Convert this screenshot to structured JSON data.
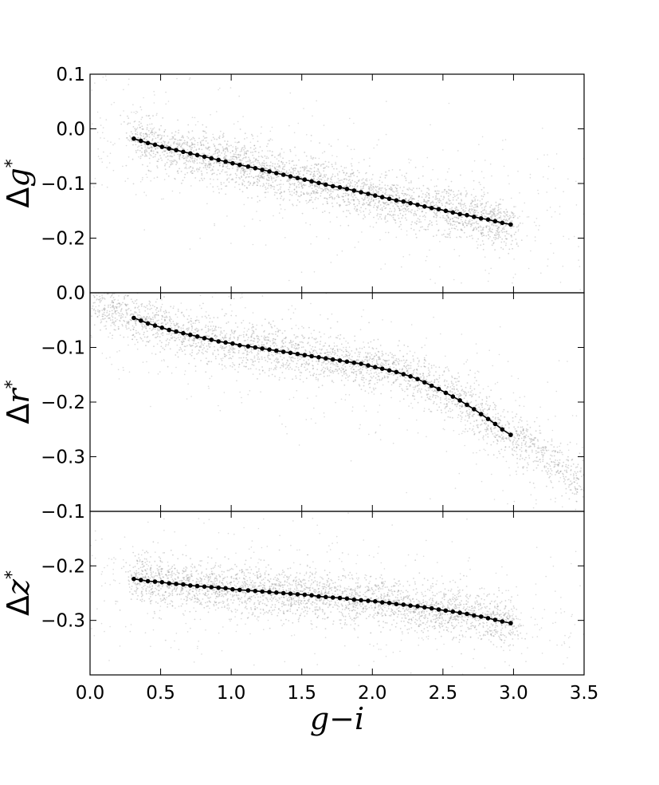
{
  "chart_data": [
    {
      "type": "scatter",
      "panel": "top",
      "ylabel": {
        "delta": "Δ",
        "var": "g",
        "sup": "*"
      },
      "xlim": [
        0.0,
        3.5
      ],
      "ylim": [
        -0.3,
        0.1
      ],
      "xticks": [
        "0.0",
        "0.5",
        "1.0",
        "1.5",
        "2.0",
        "2.5",
        "3.0",
        "3.5"
      ],
      "yticks": [
        {
          "value": 0.1,
          "label": "0.1"
        },
        {
          "value": 0.0,
          "label": "0.0"
        },
        {
          "value": -0.1,
          "label": "−0.1"
        },
        {
          "value": -0.2,
          "label": "−0.2"
        }
      ],
      "scatter_color": "#888888",
      "line_color": "#000000",
      "cloud_trend": {
        "x": [
          0.3,
          3.0
        ],
        "width": 0.022,
        "spread_x": [
          0.0,
          3.5
        ]
      },
      "series": [
        {
          "x": [
            0.31,
            0.36,
            0.41,
            0.46,
            0.51,
            0.56,
            0.61,
            0.66,
            0.71,
            0.76,
            0.81,
            0.86,
            0.91,
            0.96,
            1.01,
            1.06,
            1.12,
            1.17,
            1.22,
            1.27,
            1.32,
            1.37,
            1.42,
            1.47,
            1.52,
            1.57,
            1.62,
            1.67,
            1.72,
            1.77,
            1.82,
            1.87,
            1.92,
            1.97,
            2.02,
            2.07,
            2.12,
            2.17,
            2.22,
            2.27,
            2.32,
            2.37,
            2.42,
            2.47,
            2.52,
            2.57,
            2.62,
            2.67,
            2.72,
            2.77,
            2.82,
            2.87,
            2.92,
            2.98
          ],
          "y": [
            -0.018,
            -0.022,
            -0.026,
            -0.029,
            -0.033,
            -0.036,
            -0.039,
            -0.042,
            -0.045,
            -0.048,
            -0.051,
            -0.054,
            -0.057,
            -0.06,
            -0.063,
            -0.066,
            -0.069,
            -0.072,
            -0.075,
            -0.078,
            -0.081,
            -0.084,
            -0.087,
            -0.09,
            -0.093,
            -0.096,
            -0.099,
            -0.102,
            -0.105,
            -0.107,
            -0.11,
            -0.113,
            -0.116,
            -0.119,
            -0.122,
            -0.125,
            -0.128,
            -0.131,
            -0.133,
            -0.136,
            -0.139,
            -0.142,
            -0.145,
            -0.147,
            -0.15,
            -0.153,
            -0.156,
            -0.158,
            -0.161,
            -0.164,
            -0.166,
            -0.169,
            -0.172,
            -0.175
          ]
        }
      ]
    },
    {
      "type": "scatter",
      "panel": "middle",
      "ylabel": {
        "delta": "Δ",
        "var": "r",
        "sup": "*"
      },
      "xlim": [
        0.0,
        3.5
      ],
      "ylim": [
        -0.4,
        0.0
      ],
      "yticks": [
        {
          "value": 0.0,
          "label": "0.0"
        },
        {
          "value": -0.1,
          "label": "−0.1"
        },
        {
          "value": -0.2,
          "label": "−0.2"
        },
        {
          "value": -0.3,
          "label": "−0.3"
        }
      ],
      "scatter_color": "#888888",
      "line_color": "#000000",
      "cloud_trend": {
        "x": [
          0.0,
          3.5
        ],
        "width": 0.022,
        "spread_x": [
          0.0,
          3.5
        ]
      },
      "series": [
        {
          "x": [
            0.31,
            0.36,
            0.41,
            0.46,
            0.51,
            0.56,
            0.61,
            0.66,
            0.71,
            0.76,
            0.81,
            0.86,
            0.91,
            0.96,
            1.01,
            1.06,
            1.12,
            1.17,
            1.22,
            1.27,
            1.32,
            1.37,
            1.42,
            1.47,
            1.52,
            1.57,
            1.62,
            1.67,
            1.72,
            1.77,
            1.82,
            1.87,
            1.92,
            1.97,
            2.02,
            2.07,
            2.12,
            2.17,
            2.22,
            2.27,
            2.32,
            2.37,
            2.42,
            2.47,
            2.52,
            2.57,
            2.62,
            2.67,
            2.72,
            2.77,
            2.82,
            2.87,
            2.92,
            2.98
          ],
          "y": [
            -0.046,
            -0.051,
            -0.056,
            -0.06,
            -0.064,
            -0.068,
            -0.071,
            -0.074,
            -0.077,
            -0.08,
            -0.083,
            -0.086,
            -0.089,
            -0.091,
            -0.093,
            -0.096,
            -0.098,
            -0.1,
            -0.102,
            -0.104,
            -0.106,
            -0.108,
            -0.11,
            -0.112,
            -0.114,
            -0.116,
            -0.118,
            -0.12,
            -0.122,
            -0.124,
            -0.126,
            -0.128,
            -0.13,
            -0.133,
            -0.136,
            -0.139,
            -0.142,
            -0.145,
            -0.149,
            -0.153,
            -0.158,
            -0.164,
            -0.17,
            -0.176,
            -0.183,
            -0.19,
            -0.197,
            -0.205,
            -0.213,
            -0.222,
            -0.231,
            -0.24,
            -0.25,
            -0.26
          ]
        }
      ]
    },
    {
      "type": "scatter",
      "panel": "bottom",
      "ylabel": {
        "delta": "Δ",
        "var": "z",
        "sup": "*"
      },
      "xlabel": "g−i",
      "xlim": [
        0.0,
        3.5
      ],
      "ylim": [
        -0.4,
        -0.1
      ],
      "xticks": [
        "0.0",
        "0.5",
        "1.0",
        "1.5",
        "2.0",
        "2.5",
        "3.0",
        "3.5"
      ],
      "yticks": [
        {
          "value": -0.1,
          "label": "−0.1"
        },
        {
          "value": -0.2,
          "label": "−0.2"
        },
        {
          "value": -0.3,
          "label": "−0.3"
        }
      ],
      "scatter_color": "#888888",
      "line_color": "#000000",
      "cloud_trend": {
        "x": [
          0.3,
          3.0
        ],
        "width": 0.022,
        "spread_x": [
          0.0,
          3.5
        ]
      },
      "series": [
        {
          "x": [
            0.31,
            0.36,
            0.41,
            0.46,
            0.51,
            0.56,
            0.61,
            0.66,
            0.71,
            0.76,
            0.81,
            0.86,
            0.91,
            0.96,
            1.01,
            1.06,
            1.12,
            1.17,
            1.22,
            1.27,
            1.32,
            1.37,
            1.42,
            1.47,
            1.52,
            1.57,
            1.62,
            1.67,
            1.72,
            1.77,
            1.82,
            1.87,
            1.92,
            1.97,
            2.02,
            2.07,
            2.12,
            2.17,
            2.22,
            2.27,
            2.32,
            2.37,
            2.42,
            2.47,
            2.52,
            2.57,
            2.62,
            2.67,
            2.72,
            2.77,
            2.82,
            2.87,
            2.92,
            2.98
          ],
          "y": [
            -0.224,
            -0.226,
            -0.228,
            -0.229,
            -0.23,
            -0.232,
            -0.233,
            -0.234,
            -0.236,
            -0.237,
            -0.238,
            -0.239,
            -0.24,
            -0.241,
            -0.243,
            -0.244,
            -0.245,
            -0.246,
            -0.247,
            -0.248,
            -0.249,
            -0.25,
            -0.251,
            -0.252,
            -0.253,
            -0.254,
            -0.256,
            -0.257,
            -0.258,
            -0.259,
            -0.26,
            -0.262,
            -0.263,
            -0.264,
            -0.265,
            -0.267,
            -0.268,
            -0.27,
            -0.271,
            -0.273,
            -0.274,
            -0.276,
            -0.278,
            -0.28,
            -0.282,
            -0.284,
            -0.286,
            -0.288,
            -0.291,
            -0.293,
            -0.296,
            -0.299,
            -0.302,
            -0.305
          ]
        }
      ]
    }
  ]
}
